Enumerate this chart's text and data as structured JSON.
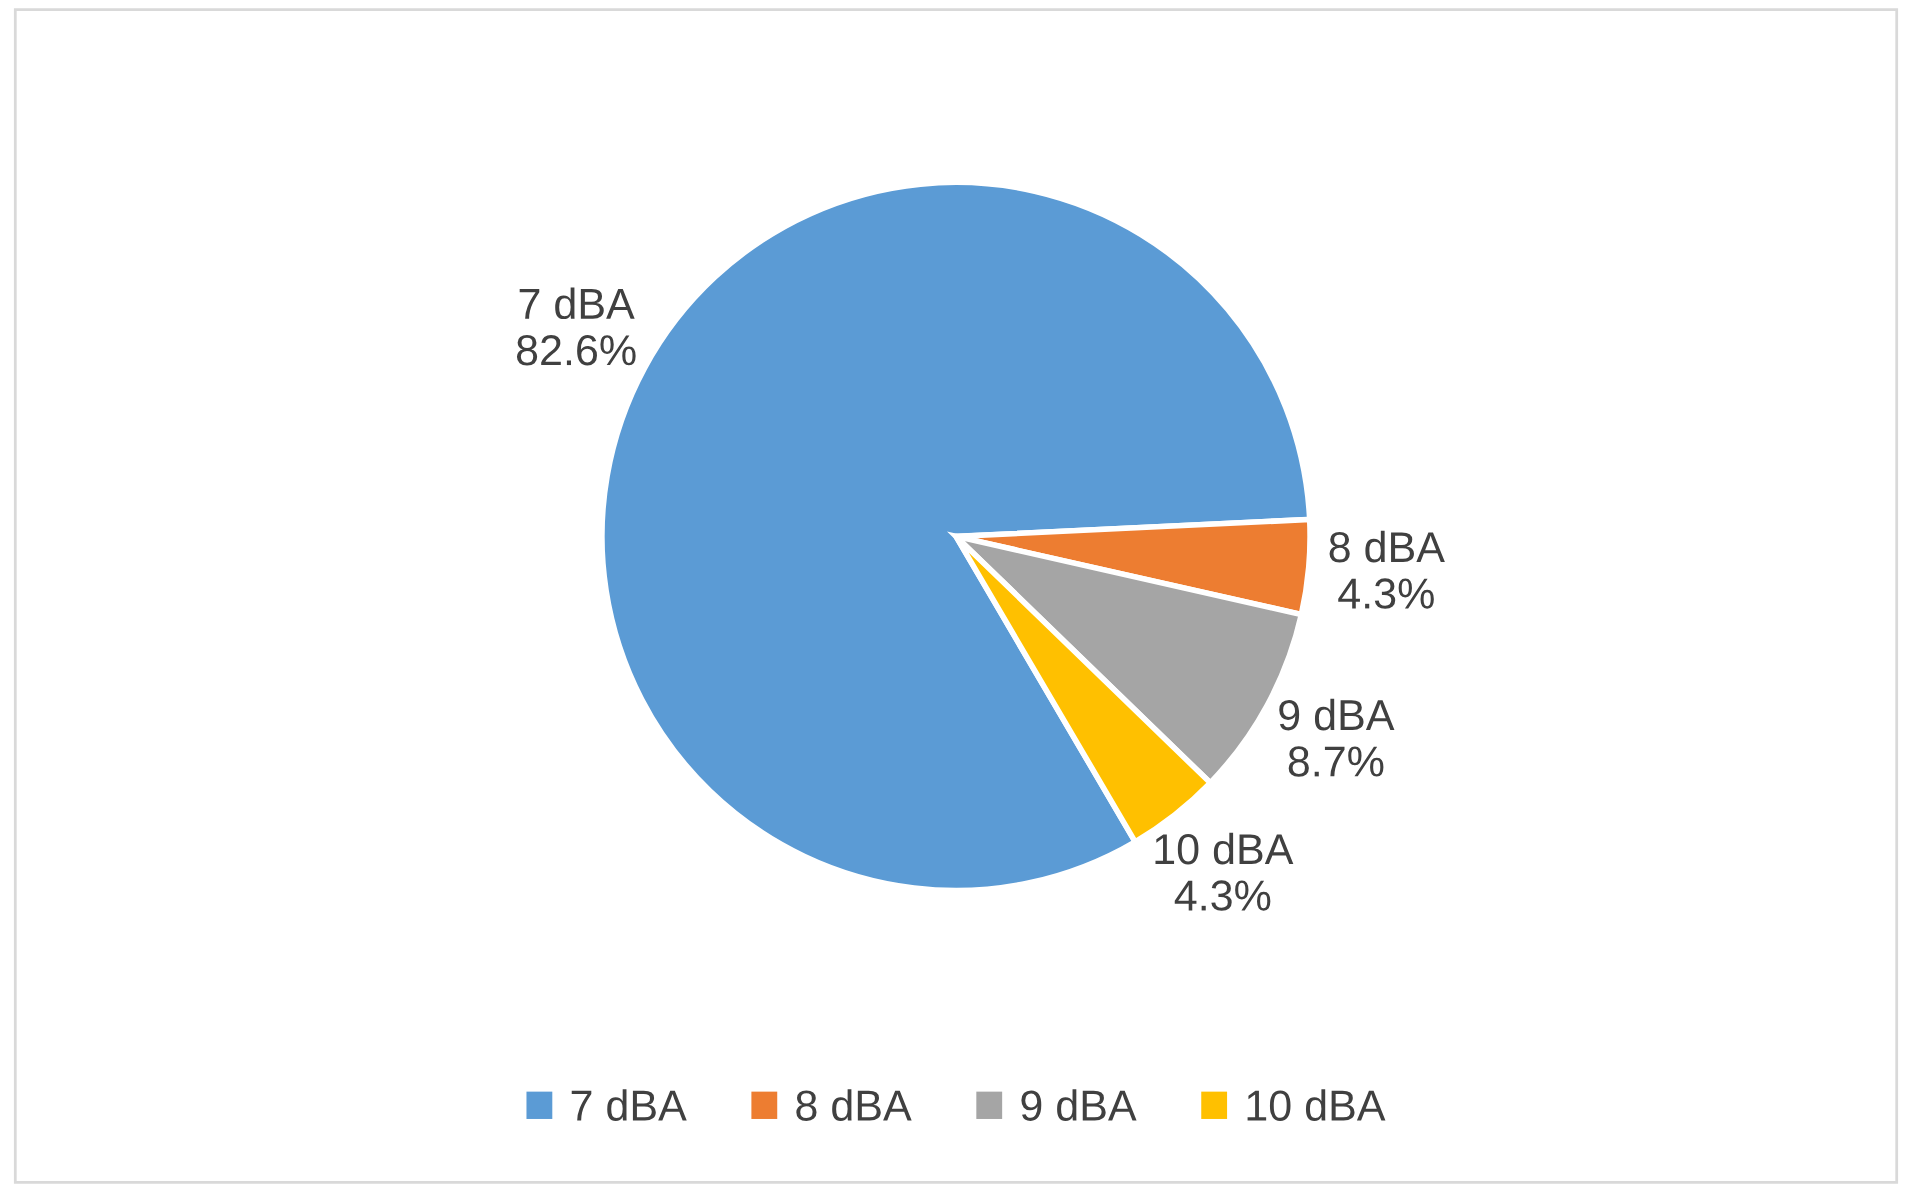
{
  "chart_data": {
    "type": "pie",
    "categories": [
      "7 dBA",
      "8 dBA",
      "9 dBA",
      "10 dBA"
    ],
    "values": [
      82.6,
      4.3,
      8.7,
      4.3
    ],
    "value_labels": [
      "82.6%",
      "4.3%",
      "8.7%",
      "4.3%"
    ],
    "colors": [
      "#5b9bd5",
      "#ed7d31",
      "#a5a5a5",
      "#ffc000"
    ],
    "legend": "bottom"
  }
}
